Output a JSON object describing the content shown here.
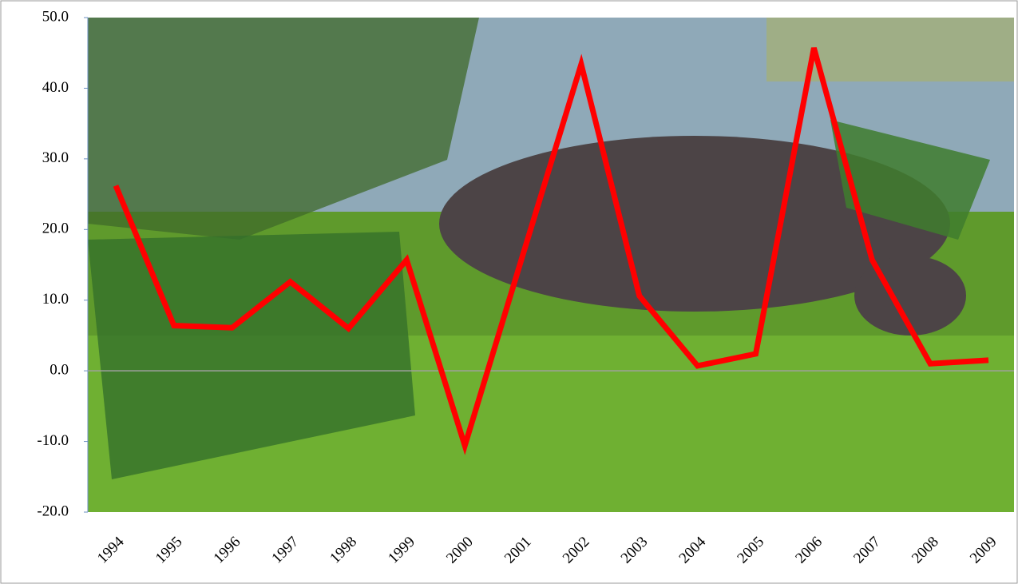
{
  "chart_data": {
    "type": "line",
    "categories": [
      "1994",
      "1995",
      "1996",
      "1997",
      "1998",
      "1999",
      "2000",
      "2001",
      "2002",
      "2003",
      "2004",
      "2005",
      "2006",
      "2007",
      "2008",
      "2009"
    ],
    "series": [
      {
        "color": "#ff0000",
        "values": [
          26.2,
          6.4,
          6.1,
          12.6,
          6.0,
          15.7,
          -10.6,
          16.5,
          43.4,
          10.6,
          0.7,
          2.4,
          45.7,
          15.7,
          1.0,
          1.5
        ]
      }
    ],
    "ylim": [
      -20,
      50
    ],
    "yticks": [
      {
        "value": -20,
        "label": "-20.0"
      },
      {
        "value": -10,
        "label": "-10.0"
      },
      {
        "value": 0,
        "label": "0.0"
      },
      {
        "value": 10,
        "label": "10.0"
      },
      {
        "value": 20,
        "label": "20.0"
      },
      {
        "value": 30,
        "label": "30.0"
      },
      {
        "value": 40,
        "label": "40.0"
      },
      {
        "value": 50,
        "label": "50.0"
      }
    ]
  }
}
